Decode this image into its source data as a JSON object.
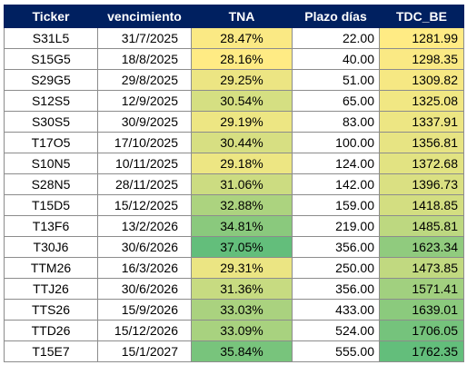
{
  "table": {
    "headers": {
      "ticker": "Ticker",
      "vencimiento": "vencimiento",
      "tna": "TNA",
      "plazo": "Plazo días",
      "tdc": "TDC_BE"
    },
    "scale_colors": {
      "low": "#FFEB84",
      "high": "#63BE7B"
    },
    "tna_range": [
      28.16,
      37.05
    ],
    "tdc_range": [
      1281.99,
      1762.35
    ],
    "rows": [
      {
        "ticker": "S31L5",
        "vencimiento": "31/7/2025",
        "tna": "28.47%",
        "tna_value": 28.47,
        "plazo": "22.00",
        "tdc": "1281.99",
        "tdc_value": 1281.99
      },
      {
        "ticker": "S15G5",
        "vencimiento": "18/8/2025",
        "tna": "28.16%",
        "tna_value": 28.16,
        "plazo": "40.00",
        "tdc": "1298.35",
        "tdc_value": 1298.35
      },
      {
        "ticker": "S29G5",
        "vencimiento": "29/8/2025",
        "tna": "29.25%",
        "tna_value": 29.25,
        "plazo": "51.00",
        "tdc": "1309.82",
        "tdc_value": 1309.82
      },
      {
        "ticker": "S12S5",
        "vencimiento": "12/9/2025",
        "tna": "30.54%",
        "tna_value": 30.54,
        "plazo": "65.00",
        "tdc": "1325.08",
        "tdc_value": 1325.08
      },
      {
        "ticker": "S30S5",
        "vencimiento": "30/9/2025",
        "tna": "29.19%",
        "tna_value": 29.19,
        "plazo": "83.00",
        "tdc": "1337.91",
        "tdc_value": 1337.91
      },
      {
        "ticker": "T17O5",
        "vencimiento": "17/10/2025",
        "tna": "30.44%",
        "tna_value": 30.44,
        "plazo": "100.00",
        "tdc": "1356.81",
        "tdc_value": 1356.81
      },
      {
        "ticker": "S10N5",
        "vencimiento": "10/11/2025",
        "tna": "29.18%",
        "tna_value": 29.18,
        "plazo": "124.00",
        "tdc": "1372.68",
        "tdc_value": 1372.68
      },
      {
        "ticker": "S28N5",
        "vencimiento": "28/11/2025",
        "tna": "31.06%",
        "tna_value": 31.06,
        "plazo": "142.00",
        "tdc": "1396.73",
        "tdc_value": 1396.73
      },
      {
        "ticker": "T15D5",
        "vencimiento": "15/12/2025",
        "tna": "32.88%",
        "tna_value": 32.88,
        "plazo": "159.00",
        "tdc": "1418.85",
        "tdc_value": 1418.85
      },
      {
        "ticker": "T13F6",
        "vencimiento": "13/2/2026",
        "tna": "34.81%",
        "tna_value": 34.81,
        "plazo": "219.00",
        "tdc": "1485.81",
        "tdc_value": 1485.81
      },
      {
        "ticker": "T30J6",
        "vencimiento": "30/6/2026",
        "tna": "37.05%",
        "tna_value": 37.05,
        "plazo": "356.00",
        "tdc": "1623.34",
        "tdc_value": 1623.34
      },
      {
        "ticker": "TTM26",
        "vencimiento": "16/3/2026",
        "tna": "29.31%",
        "tna_value": 29.31,
        "plazo": "250.00",
        "tdc": "1473.85",
        "tdc_value": 1473.85
      },
      {
        "ticker": "TTJ26",
        "vencimiento": "30/6/2026",
        "tna": "31.36%",
        "tna_value": 31.36,
        "plazo": "356.00",
        "tdc": "1571.41",
        "tdc_value": 1571.41
      },
      {
        "ticker": "TTS26",
        "vencimiento": "15/9/2026",
        "tna": "33.03%",
        "tna_value": 33.03,
        "plazo": "433.00",
        "tdc": "1639.01",
        "tdc_value": 1639.01
      },
      {
        "ticker": "TTD26",
        "vencimiento": "15/12/2026",
        "tna": "33.09%",
        "tna_value": 33.09,
        "plazo": "524.00",
        "tdc": "1706.05",
        "tdc_value": 1706.05
      },
      {
        "ticker": "T15E7",
        "vencimiento": "15/1/2027",
        "tna": "35.84%",
        "tna_value": 35.84,
        "plazo": "555.00",
        "tdc": "1762.35",
        "tdc_value": 1762.35
      }
    ]
  }
}
